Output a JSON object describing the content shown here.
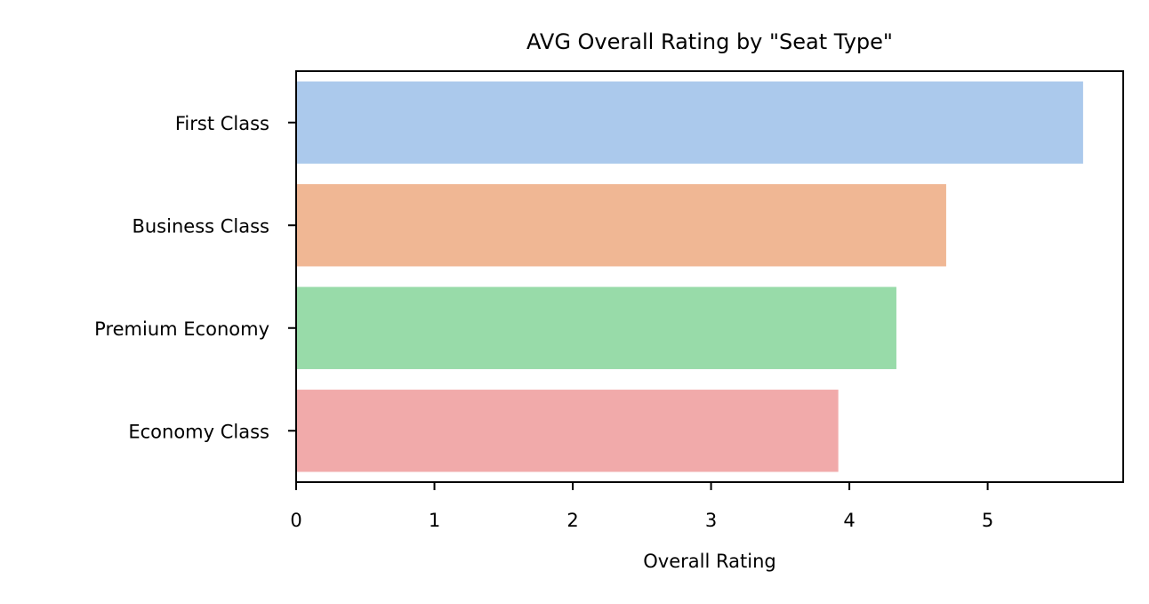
{
  "chart_data": {
    "type": "bar",
    "orientation": "horizontal",
    "title": "AVG Overall Rating by \"Seat Type\"",
    "xlabel": "Overall Rating",
    "ylabel": "",
    "categories": [
      "First Class",
      "Business Class",
      "Premium Economy",
      "Economy Class"
    ],
    "values": [
      5.69,
      4.7,
      4.34,
      3.92
    ],
    "colors": [
      "#abc9ec",
      "#f0b794",
      "#98dba9",
      "#f1aaaa"
    ],
    "xlim": [
      0,
      5.98
    ],
    "xticks": [
      "0",
      "1",
      "2",
      "3",
      "4",
      "5"
    ],
    "grid": false,
    "legend": "none"
  }
}
